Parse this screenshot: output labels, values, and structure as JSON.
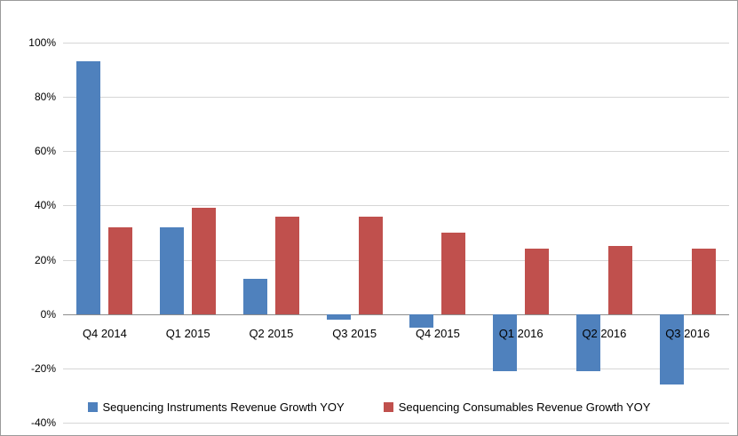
{
  "chart_data": {
    "type": "bar",
    "categories": [
      "Q4 2014",
      "Q1 2015",
      "Q2 2015",
      "Q3 2015",
      "Q4 2015",
      "Q1 2016",
      "Q2 2016",
      "Q3 2016"
    ],
    "series": [
      {
        "name": "Sequencing Instruments  Revenue Growth YOY",
        "color": "#4f81bd",
        "values": [
          93,
          32,
          13,
          -2,
          -5,
          -21,
          -21,
          -26
        ]
      },
      {
        "name": "Sequencing Consumables Revenue Growth YOY",
        "color": "#c0504d",
        "values": [
          32,
          39,
          36,
          36,
          30,
          24,
          25,
          24
        ]
      }
    ],
    "title": "",
    "xlabel": "",
    "ylabel": "",
    "ylim": [
      -40,
      100
    ],
    "ytick_step": 20,
    "ytick_labels": [
      "100%",
      "80%",
      "60%",
      "40%",
      "20%",
      "0%",
      "-20%",
      "-40%"
    ],
    "grid": true,
    "legend_position": "bottom",
    "colors": {
      "gridline": "#d6d6d6",
      "zero_axis": "#8c8c8c",
      "text": "#000000",
      "background": "#ffffff",
      "border": "#9a9a9a"
    }
  }
}
